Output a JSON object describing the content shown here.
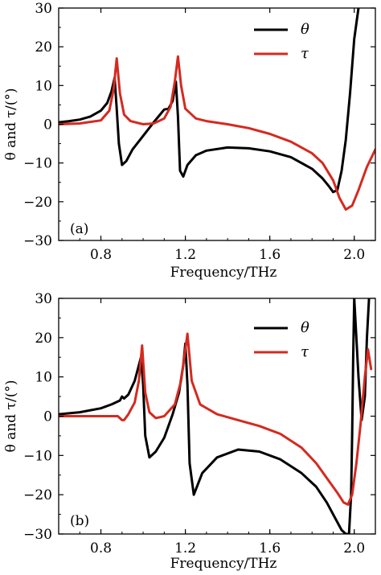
{
  "chart_data": [
    {
      "type": "line",
      "panel_label": "(a)",
      "xlabel": "Frequency/THz",
      "ylabel": "θ and τ/(°)",
      "xlim": [
        0.6,
        2.1
      ],
      "ylim": [
        -30,
        30
      ],
      "xticks": [
        0.8,
        1.2,
        1.6,
        2.0
      ],
      "xtick_labels": [
        "0.8",
        "1.2",
        "1.6",
        "2.0"
      ],
      "yticks": [
        -30,
        -20,
        -10,
        0,
        10,
        20,
        30
      ],
      "ytick_labels": [
        "−30",
        "−20",
        "−10",
        "0",
        "10",
        "20",
        "30"
      ],
      "legend_position": "top-right",
      "series": [
        {
          "name": "θ",
          "color": "#000000",
          "x": [
            0.6,
            0.65,
            0.7,
            0.75,
            0.8,
            0.83,
            0.85,
            0.865,
            0.875,
            0.885,
            0.9,
            0.92,
            0.95,
            1.0,
            1.05,
            1.08,
            1.1,
            1.12,
            1.14,
            1.155,
            1.165,
            1.175,
            1.19,
            1.21,
            1.25,
            1.3,
            1.4,
            1.5,
            1.6,
            1.7,
            1.8,
            1.85,
            1.88,
            1.9,
            1.92,
            1.94,
            1.96,
            1.98,
            2.0,
            2.02
          ],
          "y": [
            0.5,
            0.8,
            1.2,
            2.0,
            3.5,
            5.5,
            8.5,
            12.0,
            4.0,
            -5.0,
            -10.5,
            -9.5,
            -6.5,
            -3.0,
            0.5,
            2.5,
            3.8,
            4.0,
            6.0,
            11.0,
            2.0,
            -12.0,
            -13.5,
            -10.5,
            -8.0,
            -6.8,
            -6.0,
            -6.2,
            -7.0,
            -8.5,
            -11.5,
            -14.0,
            -16.0,
            -17.5,
            -17.0,
            -12.0,
            -4.0,
            8.0,
            22.0,
            30.0
          ]
        },
        {
          "name": "τ",
          "color": "#d42a20",
          "x": [
            0.6,
            0.7,
            0.8,
            0.84,
            0.86,
            0.875,
            0.89,
            0.91,
            0.94,
            1.0,
            1.05,
            1.1,
            1.13,
            1.15,
            1.165,
            1.18,
            1.2,
            1.25,
            1.3,
            1.4,
            1.5,
            1.6,
            1.7,
            1.8,
            1.85,
            1.9,
            1.93,
            1.96,
            1.99,
            2.02,
            2.06,
            2.1
          ],
          "y": [
            0.0,
            0.2,
            1.0,
            3.5,
            9.0,
            17.0,
            8.0,
            2.5,
            0.8,
            0.0,
            0.2,
            1.5,
            4.5,
            11.0,
            17.5,
            10.0,
            4.0,
            1.5,
            0.8,
            0.0,
            -1.0,
            -2.5,
            -4.5,
            -7.5,
            -10.0,
            -14.5,
            -19.0,
            -22.0,
            -21.0,
            -17.0,
            -11.0,
            -6.5
          ]
        }
      ]
    },
    {
      "type": "line",
      "panel_label": "(b)",
      "xlabel": "Frequency/THz",
      "ylabel": "θ and τ/(°)",
      "xlim": [
        0.6,
        2.1
      ],
      "ylim": [
        -30,
        30
      ],
      "xticks": [
        0.8,
        1.2,
        1.6,
        2.0
      ],
      "xtick_labels": [
        "0.8",
        "1.2",
        "1.6",
        "2.0"
      ],
      "yticks": [
        -30,
        -20,
        -10,
        0,
        10,
        20,
        30
      ],
      "ytick_labels": [
        "−30",
        "−20",
        "−10",
        "0",
        "10",
        "20",
        "30"
      ],
      "legend_position": "top-right",
      "series": [
        {
          "name": "θ",
          "color": "#000000",
          "x": [
            0.6,
            0.7,
            0.8,
            0.85,
            0.89,
            0.9,
            0.91,
            0.93,
            0.96,
            0.98,
            0.99,
            1.0,
            1.01,
            1.03,
            1.06,
            1.1,
            1.14,
            1.17,
            1.19,
            1.2,
            1.21,
            1.22,
            1.24,
            1.28,
            1.35,
            1.45,
            1.55,
            1.65,
            1.75,
            1.82,
            1.87,
            1.91,
            1.94,
            1.96,
            1.975,
            1.985,
            1.99,
            1.995,
            2.0,
            2.02,
            2.035,
            2.05,
            2.06,
            2.07
          ],
          "y": [
            0.5,
            1.0,
            2.0,
            3.0,
            4.0,
            5.0,
            4.5,
            5.5,
            9.0,
            13.0,
            15.0,
            8.0,
            -5.0,
            -10.5,
            -9.0,
            -5.5,
            0.5,
            6.0,
            13.0,
            18.5,
            8.0,
            -12.0,
            -20.0,
            -14.5,
            -10.5,
            -8.5,
            -9.0,
            -11.0,
            -14.5,
            -18.0,
            -22.0,
            -26.0,
            -29.0,
            -30.0,
            -30.0,
            -20.0,
            -5.0,
            15.0,
            30.0,
            10.0,
            -1.0,
            5.0,
            20.0,
            30.0
          ]
        },
        {
          "name": "τ",
          "color": "#d42a20",
          "x": [
            0.6,
            0.7,
            0.8,
            0.88,
            0.9,
            0.91,
            0.93,
            0.96,
            0.98,
            0.995,
            1.01,
            1.03,
            1.06,
            1.1,
            1.15,
            1.18,
            1.2,
            1.21,
            1.23,
            1.27,
            1.35,
            1.45,
            1.55,
            1.65,
            1.75,
            1.82,
            1.88,
            1.92,
            1.95,
            1.97,
            1.99,
            2.01,
            2.03,
            2.05,
            2.065,
            2.08
          ],
          "y": [
            0.0,
            0.0,
            0.0,
            0.0,
            -1.0,
            -1.0,
            0.5,
            3.5,
            9.0,
            18.0,
            6.0,
            1.0,
            -0.5,
            0.0,
            3.0,
            9.0,
            17.0,
            21.0,
            9.0,
            3.0,
            0.5,
            -1.0,
            -2.5,
            -4.5,
            -8.0,
            -12.0,
            -16.5,
            -19.5,
            -22.0,
            -22.5,
            -20.0,
            -12.0,
            -2.0,
            10.0,
            17.0,
            12.0
          ]
        }
      ]
    }
  ]
}
